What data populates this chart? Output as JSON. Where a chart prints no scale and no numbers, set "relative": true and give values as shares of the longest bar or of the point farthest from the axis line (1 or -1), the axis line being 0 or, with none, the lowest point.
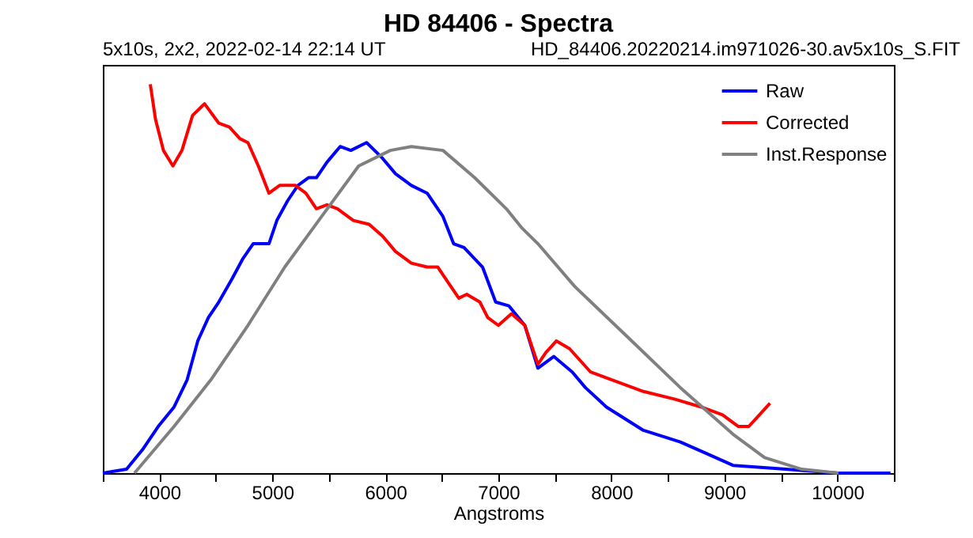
{
  "chart_data": {
    "type": "line",
    "title": "HD 84406 - Spectra",
    "subtitle": "5x10s, 2x2, 2022-02-14 22:14 UT",
    "annotations": [
      "HD_84406.20220214.im971026-30.av5x10s_S.FIT"
    ],
    "xlabel": "Angstroms",
    "relative": true,
    "legend": "top right",
    "grid": false,
    "xlim": [
      3500,
      10500
    ],
    "xticks": [
      {
        "value": 3500,
        "label": null
      },
      4000,
      {
        "value": 4500,
        "label": null
      },
      5000,
      {
        "value": 5500,
        "label": null
      },
      6000,
      {
        "value": 6500,
        "label": null
      },
      7000,
      {
        "value": 7500,
        "label": null
      },
      8000,
      {
        "value": 8500,
        "label": null
      },
      9000,
      {
        "value": 9500,
        "label": null
      },
      10000,
      {
        "value": 10500,
        "label": null
      }
    ],
    "series": [
      {
        "name": "Raw",
        "color": "#0000ff",
        "x": [
          3500,
          3710,
          3850,
          3990,
          4130,
          4246,
          4340,
          4434,
          4526,
          4644,
          4736,
          4830,
          4970,
          5040,
          5134,
          5226,
          5320,
          5390,
          5484,
          5600,
          5694,
          5834,
          5974,
          6090,
          6230,
          6370,
          6510,
          6604,
          6696,
          6860,
          6976,
          7094,
          7234,
          7350,
          7490,
          7654,
          7770,
          7956,
          8284,
          8610,
          8844,
          9076,
          9544,
          10010,
          10470
        ],
        "values": [
          0,
          0.01,
          0.06,
          0.12,
          0.17,
          0.24,
          0.34,
          0.4,
          0.44,
          0.5,
          0.55,
          0.59,
          0.59,
          0.65,
          0.7,
          0.74,
          0.76,
          0.76,
          0.8,
          0.84,
          0.83,
          0.85,
          0.81,
          0.77,
          0.74,
          0.72,
          0.66,
          0.59,
          0.58,
          0.53,
          0.44,
          0.43,
          0.38,
          0.27,
          0.3,
          0.26,
          0.22,
          0.17,
          0.11,
          0.08,
          0.05,
          0.02,
          0.01,
          0,
          0
        ]
      },
      {
        "name": "Corrected",
        "color": "#ff0000",
        "x": [
          3920,
          3966,
          4036,
          4120,
          4200,
          4294,
          4400,
          4526,
          4620,
          4714,
          4784,
          4876,
          4970,
          5064,
          5204,
          5296,
          5390,
          5484,
          5576,
          5716,
          5856,
          5974,
          6090,
          6230,
          6370,
          6464,
          6556,
          6650,
          6720,
          6836,
          6906,
          7000,
          7116,
          7234,
          7350,
          7420,
          7514,
          7630,
          7816,
          8004,
          8284,
          8564,
          8796,
          8984,
          9124,
          9216,
          9310,
          9404
        ],
        "values": [
          1,
          0.91,
          0.83,
          0.79,
          0.83,
          0.92,
          0.95,
          0.9,
          0.89,
          0.86,
          0.85,
          0.79,
          0.72,
          0.74,
          0.74,
          0.72,
          0.68,
          0.69,
          0.68,
          0.65,
          0.64,
          0.61,
          0.57,
          0.54,
          0.53,
          0.53,
          0.49,
          0.45,
          0.46,
          0.44,
          0.4,
          0.38,
          0.41,
          0.38,
          0.28,
          0.31,
          0.34,
          0.32,
          0.26,
          0.24,
          0.21,
          0.19,
          0.17,
          0.15,
          0.12,
          0.12,
          0.15,
          0.18
        ]
      },
      {
        "name": "Inst.Response",
        "color": "#808080",
        "x": [
          3780,
          4130,
          4456,
          4784,
          5110,
          5436,
          5764,
          6044,
          6230,
          6510,
          6790,
          7070,
          7210,
          7350,
          7676,
          8144,
          8610,
          9076,
          9356,
          9684,
          10010
        ],
        "values": [
          0,
          0.12,
          0.24,
          0.38,
          0.53,
          0.66,
          0.79,
          0.83,
          0.84,
          0.83,
          0.76,
          0.68,
          0.63,
          0.59,
          0.48,
          0.35,
          0.22,
          0.1,
          0.04,
          0.01,
          0
        ]
      }
    ]
  }
}
